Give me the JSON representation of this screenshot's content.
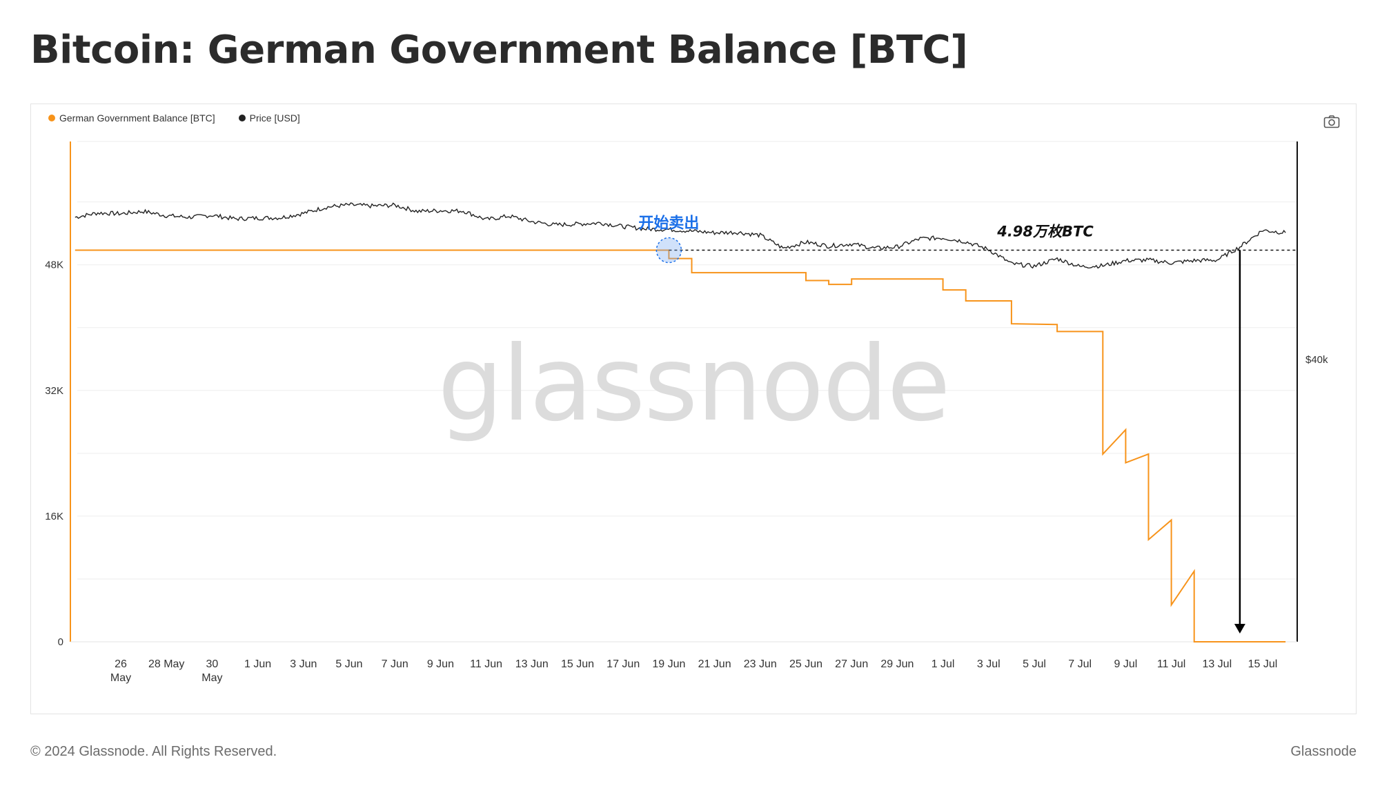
{
  "page": {
    "title": "Bitcoin: German Government Balance [BTC]",
    "footer_copyright": "© 2024 Glassnode. All Rights Reserved.",
    "footer_brand": "Glassnode",
    "watermark": "glassnode"
  },
  "icons": {
    "camera": "camera-icon"
  },
  "colors": {
    "balance": "#f7931a",
    "price": "#222222",
    "annotation_blue": "#1a6fe8",
    "grid": "#eeeeee"
  },
  "chart_data": {
    "type": "line",
    "title": "Bitcoin: German Government Balance [BTC]",
    "legend": [
      "German Government Balance [BTC]",
      "Price [USD]"
    ],
    "legend_position": "top-left",
    "grid": true,
    "x_range": [
      "2024-05-24",
      "2024-07-16"
    ],
    "x_tick_labels": [
      [
        "26",
        "May"
      ],
      [
        "28 May"
      ],
      [
        "30",
        "May"
      ],
      [
        "1 Jun"
      ],
      [
        "3 Jun"
      ],
      [
        "5 Jun"
      ],
      [
        "7 Jun"
      ],
      [
        "9 Jun"
      ],
      [
        "11 Jun"
      ],
      [
        "13 Jun"
      ],
      [
        "15 Jun"
      ],
      [
        "17 Jun"
      ],
      [
        "19 Jun"
      ],
      [
        "21 Jun"
      ],
      [
        "23 Jun"
      ],
      [
        "25 Jun"
      ],
      [
        "27 Jun"
      ],
      [
        "29 Jun"
      ],
      [
        "1 Jul"
      ],
      [
        "3 Jul"
      ],
      [
        "5 Jul"
      ],
      [
        "7 Jul"
      ],
      [
        "9 Jul"
      ],
      [
        "11 Jul"
      ],
      [
        "13 Jul"
      ],
      [
        "15 Jul"
      ]
    ],
    "left_axis": {
      "label": "German Government Balance [BTC]",
      "ticks": [
        0,
        16000,
        32000,
        48000
      ],
      "tick_labels": [
        "0",
        "16K",
        "32K",
        "48K"
      ],
      "range": [
        0,
        63700
      ]
    },
    "right_axis": {
      "label": "Price [USD]",
      "tick_labels": [
        "$40k"
      ],
      "log": true
    },
    "series": [
      {
        "name": "German Government Balance [BTC]",
        "axis": "left",
        "points": [
          [
            "2024-05-24",
            49858
          ],
          [
            "2024-06-19",
            49858
          ],
          [
            "2024-06-19",
            48800
          ],
          [
            "2024-06-20",
            48800
          ],
          [
            "2024-06-20",
            47000
          ],
          [
            "2024-06-25",
            47000
          ],
          [
            "2024-06-25",
            46000
          ],
          [
            "2024-06-26",
            46000
          ],
          [
            "2024-06-26",
            45500
          ],
          [
            "2024-06-27",
            45500
          ],
          [
            "2024-06-27",
            46200
          ],
          [
            "2024-07-01",
            46200
          ],
          [
            "2024-07-01",
            44800
          ],
          [
            "2024-07-02",
            44800
          ],
          [
            "2024-07-02",
            43400
          ],
          [
            "2024-07-04",
            43400
          ],
          [
            "2024-07-04",
            40500
          ],
          [
            "2024-07-06",
            40400
          ],
          [
            "2024-07-06",
            39500
          ],
          [
            "2024-07-08",
            39500
          ],
          [
            "2024-07-08",
            23900
          ],
          [
            "2024-07-09",
            27000
          ],
          [
            "2024-07-09",
            22800
          ],
          [
            "2024-07-10",
            23900
          ],
          [
            "2024-07-10",
            13000
          ],
          [
            "2024-07-11",
            15500
          ],
          [
            "2024-07-11",
            4700
          ],
          [
            "2024-07-12",
            9000
          ],
          [
            "2024-07-12",
            0
          ],
          [
            "2024-07-16",
            0
          ]
        ]
      },
      {
        "name": "Price [USD]",
        "axis": "right",
        "points": [
          [
            "2024-05-24",
            67900
          ],
          [
            "2024-05-25",
            69000
          ],
          [
            "2024-05-26",
            68800
          ],
          [
            "2024-05-27",
            69400
          ],
          [
            "2024-05-28",
            68300
          ],
          [
            "2024-05-29",
            67900
          ],
          [
            "2024-05-30",
            68400
          ],
          [
            "2024-05-31",
            67500
          ],
          [
            "2024-06-01",
            67700
          ],
          [
            "2024-06-02",
            67800
          ],
          [
            "2024-06-03",
            68900
          ],
          [
            "2024-06-04",
            70500
          ],
          [
            "2024-06-05",
            71100
          ],
          [
            "2024-06-06",
            70800
          ],
          [
            "2024-06-07",
            71000
          ],
          [
            "2024-06-08",
            69400
          ],
          [
            "2024-06-09",
            69600
          ],
          [
            "2024-06-10",
            69500
          ],
          [
            "2024-06-11",
            67300
          ],
          [
            "2024-06-12",
            68200
          ],
          [
            "2024-06-13",
            66800
          ],
          [
            "2024-06-14",
            66000
          ],
          [
            "2024-06-15",
            66200
          ],
          [
            "2024-06-16",
            66500
          ],
          [
            "2024-06-17",
            65600
          ],
          [
            "2024-06-18",
            65000
          ],
          [
            "2024-06-19",
            64900
          ],
          [
            "2024-06-20",
            64500
          ],
          [
            "2024-06-21",
            64100
          ],
          [
            "2024-06-22",
            64200
          ],
          [
            "2024-06-23",
            63500
          ],
          [
            "2024-06-24",
            60500
          ],
          [
            "2024-06-25",
            61900
          ],
          [
            "2024-06-26",
            61000
          ],
          [
            "2024-06-27",
            61500
          ],
          [
            "2024-06-28",
            60500
          ],
          [
            "2024-06-29",
            60800
          ],
          [
            "2024-06-30",
            62700
          ],
          [
            "2024-07-01",
            62900
          ],
          [
            "2024-07-02",
            62000
          ],
          [
            "2024-07-03",
            60200
          ],
          [
            "2024-07-04",
            57100
          ],
          [
            "2024-07-05",
            56600
          ],
          [
            "2024-07-06",
            58200
          ],
          [
            "2024-07-07",
            56500
          ],
          [
            "2024-07-08",
            56700
          ],
          [
            "2024-07-09",
            57800
          ],
          [
            "2024-07-10",
            57900
          ],
          [
            "2024-07-11",
            57300
          ],
          [
            "2024-07-12",
            57800
          ],
          [
            "2024-07-13",
            57900
          ],
          [
            "2024-07-14",
            60800
          ],
          [
            "2024-07-15",
            64700
          ],
          [
            "2024-07-16",
            64100
          ]
        ]
      }
    ],
    "annotations": [
      {
        "text": "开始卖出",
        "date": "2024-06-19",
        "value": 49858
      },
      {
        "text": "4.98万枚BTC",
        "date": "2024-07-14",
        "value": 49858
      }
    ]
  }
}
